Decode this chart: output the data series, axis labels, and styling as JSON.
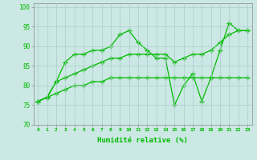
{
  "xlabel": "Humidité relative (%)",
  "bg_color": "#cce8e4",
  "grid_color": "#aacccc",
  "line_color": "#00bb00",
  "ylim": [
    70,
    101
  ],
  "xlim": [
    -0.5,
    23.5
  ],
  "yticks": [
    70,
    75,
    80,
    85,
    90,
    95,
    100
  ],
  "xticks": [
    0,
    1,
    2,
    3,
    4,
    5,
    6,
    7,
    8,
    9,
    10,
    11,
    12,
    13,
    14,
    15,
    16,
    17,
    18,
    19,
    20,
    21,
    22,
    23
  ],
  "series1": [
    76,
    77,
    81,
    86,
    88,
    88,
    89,
    89,
    90,
    93,
    94,
    91,
    89,
    87,
    87,
    75,
    80,
    83,
    76,
    82,
    89,
    96,
    94,
    94
  ],
  "series2": [
    76,
    77,
    81,
    82,
    83,
    84,
    85,
    86,
    87,
    87,
    88,
    88,
    88,
    88,
    88,
    86,
    87,
    88,
    88,
    89,
    91,
    93,
    94,
    94
  ],
  "series3": [
    76,
    77,
    78,
    79,
    80,
    80,
    81,
    81,
    82,
    82,
    82,
    82,
    82,
    82,
    82,
    82,
    82,
    82,
    82,
    82,
    82,
    82,
    82,
    82
  ]
}
